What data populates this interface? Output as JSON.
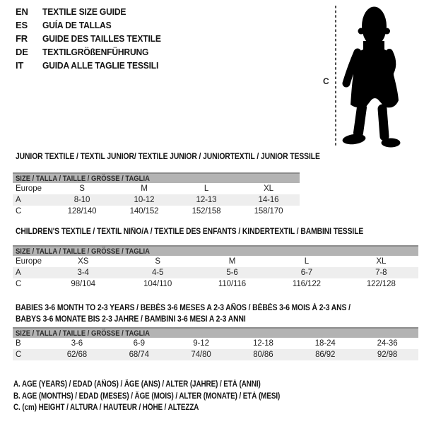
{
  "languages": [
    {
      "code": "EN",
      "title": "TEXTILE SIZE GUIDE"
    },
    {
      "code": "ES",
      "title": "GUÍA DE TALLAS"
    },
    {
      "code": "FR",
      "title": "GUIDE DES TAILLES TEXTILE"
    },
    {
      "code": "DE",
      "title": "TEXTILGRÖßENFÜHRUNG"
    },
    {
      "code": "IT",
      "title": "GUIDA ALLE TAGLIE TESSILI"
    }
  ],
  "figure": {
    "height_label": "C"
  },
  "tables": [
    {
      "title_lines": [
        "JUNIOR TEXTILE / TEXTIL JUNIOR/ TEXTILE JUNIOR / JUNIORTEXTIL / JUNIOR TESSILE"
      ],
      "size_header": "SIZE / TALLA / TAILLE / GRÖSSE / TAGLIA",
      "rows": [
        {
          "label": "Europe",
          "cells": [
            "S",
            "M",
            "L",
            "XL"
          ]
        },
        {
          "label": "A",
          "cells": [
            "8-10",
            "10-12",
            "12-13",
            "14-16"
          ]
        },
        {
          "label": "C",
          "cells": [
            "128/140",
            "140/152",
            "152/158",
            "158/170"
          ]
        }
      ]
    },
    {
      "title_lines": [
        "CHILDREN'S TEXTILE / TEXTIL NIÑO/A / TEXTILE DES ENFANTS / KINDERTEXTIL / BAMBINI TESSILE"
      ],
      "size_header": "SIZE / TALLA / TAILLE / GRÖSSE / TAGLIA",
      "rows": [
        {
          "label": "Europe",
          "cells": [
            "XS",
            "S",
            "M",
            "L",
            "XL"
          ]
        },
        {
          "label": "A",
          "cells": [
            "3-4",
            "4-5",
            "5-6",
            "6-7",
            "7-8"
          ]
        },
        {
          "label": "C",
          "cells": [
            "98/104",
            "104/110",
            "110/116",
            "116/122",
            "122/128"
          ]
        }
      ]
    },
    {
      "title_lines": [
        "BABIES 3-6 MONTH TO 2-3 YEARS / BEBÉS 3-6 MESES A 2-3 AÑOS / BÉBÉS 3-6 MOIS À 2-3 ANS /",
        "BABYS 3-6 MONATE BIS 2-3 JAHRE / BAMBINI 3-6 MESI A 2-3 ANNI"
      ],
      "size_header": "SIZE / TALLA / TAILLE / GRÖSSE / TAGLIA",
      "rows": [
        {
          "label": "B",
          "cells": [
            "3-6",
            "6-9",
            "9-12",
            "12-18",
            "18-24",
            "24-36"
          ]
        },
        {
          "label": "C",
          "cells": [
            "62/68",
            "68/74",
            "74/80",
            "80/86",
            "86/92",
            "92/98"
          ]
        }
      ]
    }
  ],
  "footer_notes": [
    "A. AGE (YEARS) / EDAD (AÑOS) / ÂGE (ANS) / ALTER (JAHRE) / ETÀ (ANNI)",
    "B. AGE (MONTHS) / EDAD (MESES) / ÂGE (MOIS) / ALTER (MONATE) / ETÀ (MESI)",
    "C. (cm) HEIGHT / ALTURA / HAUTEUR / HÖHE / ALTEZZA"
  ],
  "colors": {
    "header_bar_bg": "#b3b3b3",
    "header_bar_border": "#8c8c8c",
    "alt_row_bg": "#eeeeee",
    "silhouette": "#000000",
    "dashed_line": "#4c4c4c"
  }
}
